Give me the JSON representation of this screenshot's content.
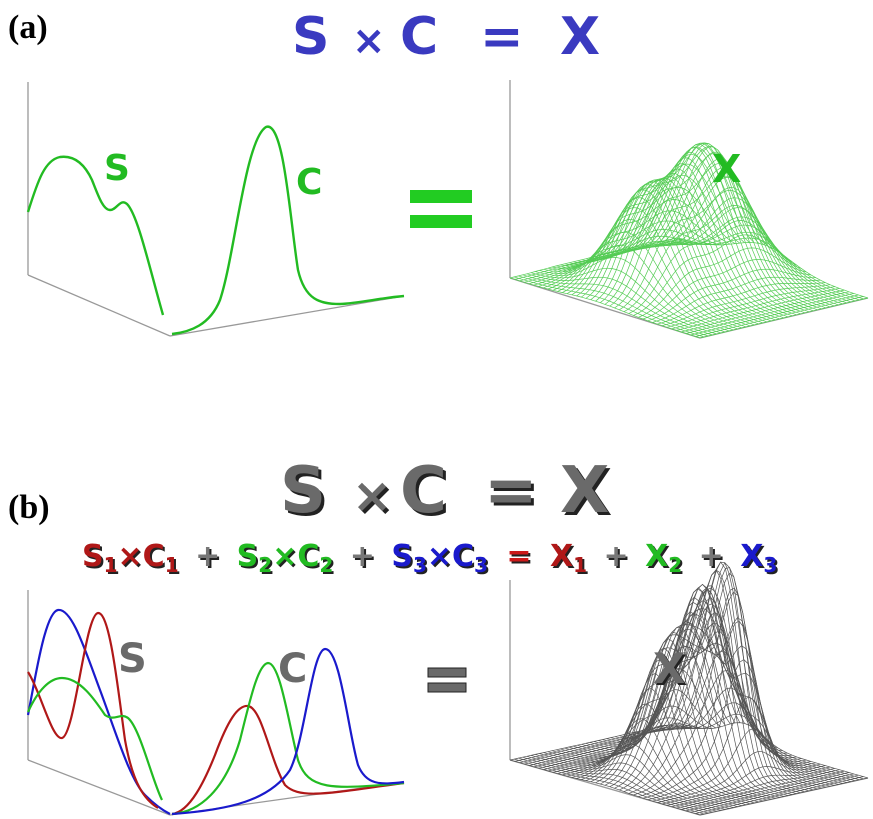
{
  "panel_a": {
    "label": "(a)",
    "equation": {
      "s": "S",
      "times": "×",
      "c": "C",
      "eq": "=",
      "x": "X"
    },
    "curve_label_s": "S",
    "curve_label_c": "C",
    "surface_label_x": "X",
    "equals_sign": "=",
    "colors": {
      "equation": "#3a3ac0",
      "curves": "#22bb22",
      "surface": "#66dd66"
    }
  },
  "panel_b": {
    "label": "(b)",
    "equation": {
      "s": "S",
      "times": "×",
      "c": "C",
      "eq": "=",
      "x": "X"
    },
    "sub_equation": {
      "s1": "S",
      "i1": "1",
      "t1": "×",
      "c1": "C",
      "j1": "1",
      "p1": "+",
      "s2": "S",
      "i2": "2",
      "t2": "×",
      "c2": "C",
      "j2": "2",
      "p2": "+",
      "s3": "S",
      "i3": "3",
      "t3": "×",
      "c3": "C",
      "j3": "3",
      "eq": "=",
      "x1": "X",
      "k1": "1",
      "p3": "+",
      "x2": "X",
      "k2": "2",
      "p4": "+",
      "x3": "X",
      "k3": "3"
    },
    "curve_label_s": "S",
    "curve_label_c": "C",
    "surface_label_x": "X",
    "equals_sign": "=",
    "colors": {
      "gray": "#666666",
      "red": "#b01818",
      "green": "#22bb22",
      "blue": "#1a1acc",
      "surface": "#555555"
    }
  }
}
